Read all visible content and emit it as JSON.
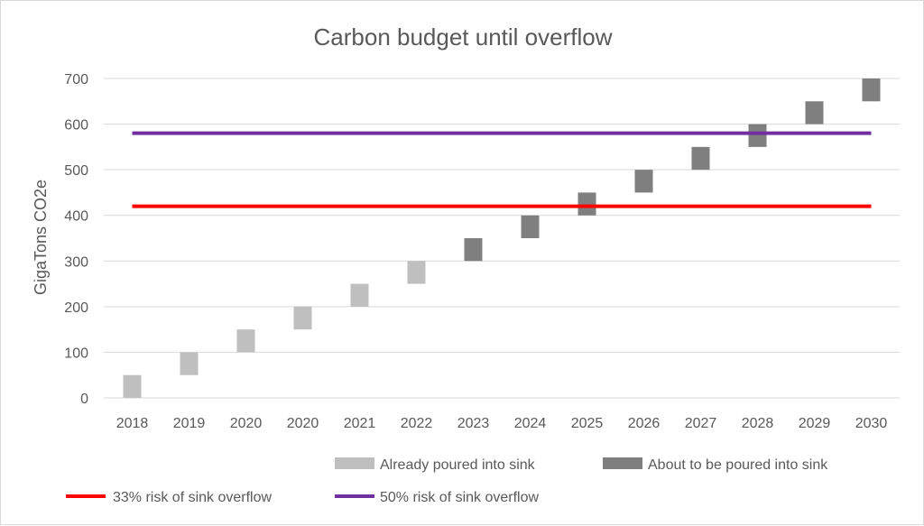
{
  "chart_data": {
    "type": "bar",
    "title": "Carbon budget until overflow",
    "xlabel": "",
    "ylabel": "GigaTons CO2e",
    "ylim": [
      0,
      700
    ],
    "yticks": [
      0,
      100,
      200,
      300,
      400,
      500,
      600,
      700
    ],
    "categories": [
      "2018",
      "2019",
      "2020",
      "2020",
      "2021",
      "2022",
      "2023",
      "2024",
      "2025",
      "2026",
      "2027",
      "2028",
      "2029",
      "2030"
    ],
    "series": [
      {
        "name": "Already poured into sink",
        "color": "#bfbfbf",
        "ranges": [
          [
            0,
            50
          ],
          [
            50,
            100
          ],
          [
            100,
            150
          ],
          [
            150,
            200
          ],
          [
            200,
            250
          ],
          [
            250,
            300
          ],
          null,
          null,
          null,
          null,
          null,
          null,
          null,
          null
        ]
      },
      {
        "name": "About to be poured into sink",
        "color": "#7f7f7f",
        "ranges": [
          null,
          null,
          null,
          null,
          null,
          null,
          [
            300,
            350
          ],
          [
            350,
            400
          ],
          [
            400,
            450
          ],
          [
            450,
            500
          ],
          [
            500,
            550
          ],
          [
            550,
            600
          ],
          [
            600,
            650
          ],
          [
            650,
            700
          ]
        ]
      }
    ],
    "reference_lines": [
      {
        "name": "33% risk of sink overflow",
        "value": 420,
        "color": "#ff0000"
      },
      {
        "name": "50% risk of sink overflow",
        "value": 580,
        "color": "#7030a0"
      }
    ],
    "grid": true,
    "legend_position": "bottom"
  }
}
